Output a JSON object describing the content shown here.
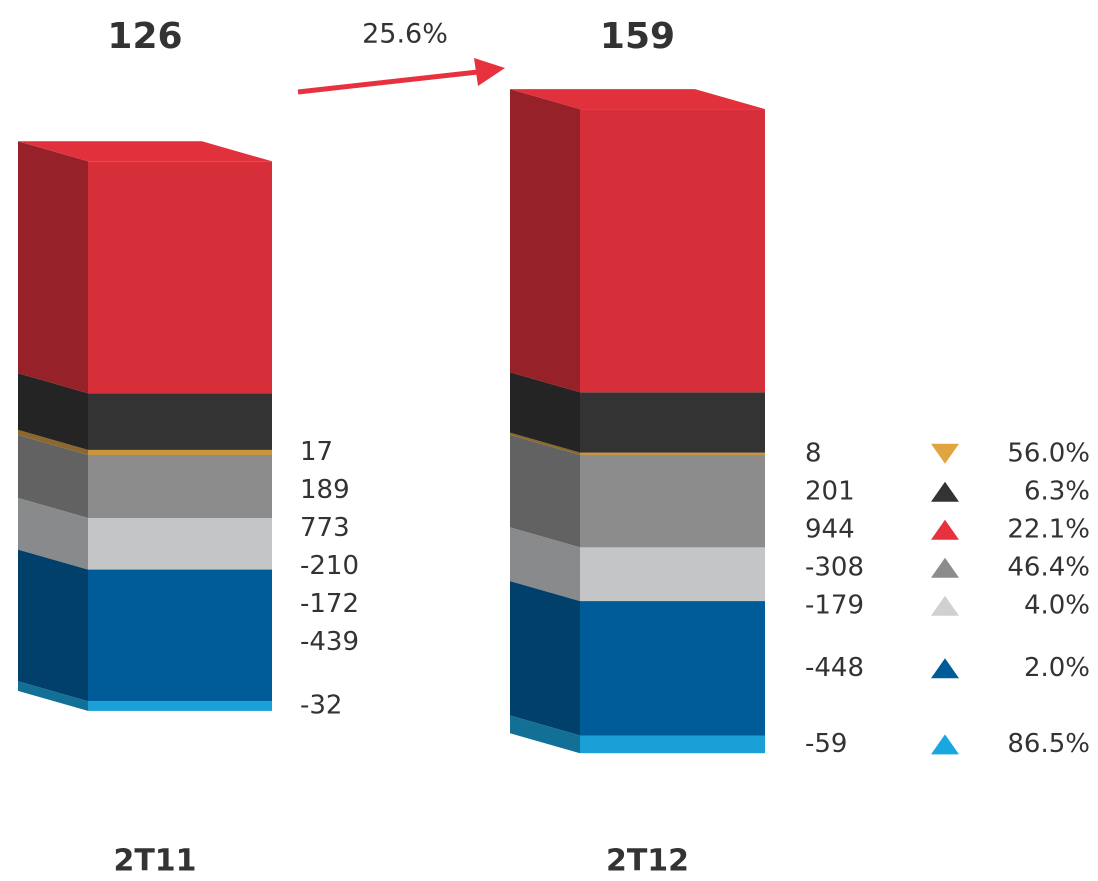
{
  "chart_data": {
    "type": "stacked-bar-3d",
    "categories": [
      "2T11",
      "2T12"
    ],
    "totals": [
      126,
      159
    ],
    "annotation": "25.6%",
    "series": [
      {
        "color": "#c8963e",
        "values": [
          17,
          8
        ],
        "change_label": "56.0%",
        "direction": "down",
        "triangle_color": "#e0a440"
      },
      {
        "color": "#333333",
        "values": [
          189,
          201
        ],
        "change_label": "6.3%",
        "direction": "up",
        "triangle_color": "#333333"
      },
      {
        "color": "#d62f3a",
        "values": [
          773,
          944
        ],
        "change_label": "22.1%",
        "direction": "up",
        "triangle_color": "#e8313f"
      },
      {
        "color": "#8c8c8c",
        "values": [
          -210,
          -308
        ],
        "change_label": "46.4%",
        "direction": "up",
        "triangle_color": "#8c8c8c"
      },
      {
        "color": "#c4c5c7",
        "values": [
          -172,
          -179
        ],
        "change_label": "4.0%",
        "direction": "up",
        "triangle_color": "#cfd0d2"
      },
      {
        "color": "#005c99",
        "values": [
          -439,
          -448
        ],
        "change_label": "2.0%",
        "direction": "up",
        "triangle_color": "#005c99"
      },
      {
        "color": "#1a9fd6",
        "values": [
          -32,
          -59
        ],
        "change_label": "86.5%",
        "direction": "up",
        "triangle_color": "#19a7e0"
      }
    ]
  }
}
